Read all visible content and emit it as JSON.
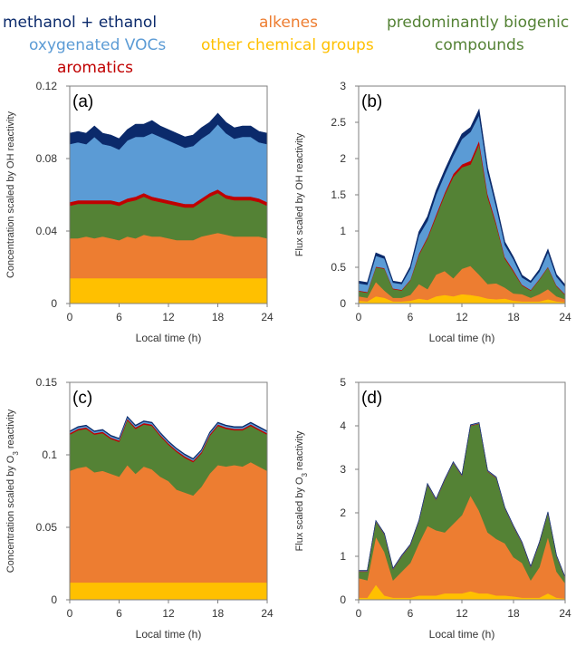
{
  "legend": {
    "methanol_ethanol": "methanol + ethanol",
    "oxygenated_vocs": "oxygenated VOCs",
    "aromatics": "aromatics",
    "alkenes": "alkenes",
    "other_chemical_groups": "other chemical groups",
    "biogenic_line1": "predominantly biogenic",
    "biogenic_line2": "compounds"
  },
  "colors": {
    "methanol_ethanol": "#0b2a6b",
    "oxygenated_vocs": "#5b9bd5",
    "aromatics": "#c00000",
    "alkenes": "#ed7d31",
    "other_chemical_groups": "#ffc000",
    "biogenic": "#548235"
  },
  "chart_data": [
    {
      "type": "area",
      "panel_label": "(a)",
      "xlabel": "Local time (h)",
      "ylabel": "Concentration scaled by OH reactivity",
      "xlim": [
        0,
        24
      ],
      "ylim": [
        0,
        0.12
      ],
      "xticks": [
        "0",
        "6",
        "12",
        "18",
        "24"
      ],
      "yticks": [
        "0",
        "0.04",
        "0.08",
        "0.12"
      ],
      "x": [
        0,
        1,
        2,
        3,
        4,
        5,
        6,
        7,
        8,
        9,
        10,
        11,
        12,
        13,
        14,
        15,
        16,
        17,
        18,
        19,
        20,
        21,
        22,
        23,
        24
      ],
      "series": [
        {
          "key": "other_chemical_groups",
          "values": [
            0.014,
            0.014,
            0.014,
            0.014,
            0.014,
            0.014,
            0.014,
            0.014,
            0.014,
            0.014,
            0.014,
            0.014,
            0.014,
            0.014,
            0.014,
            0.014,
            0.014,
            0.014,
            0.014,
            0.014,
            0.014,
            0.014,
            0.014,
            0.014,
            0.014
          ]
        },
        {
          "key": "alkenes",
          "values": [
            0.022,
            0.022,
            0.023,
            0.022,
            0.023,
            0.022,
            0.021,
            0.023,
            0.022,
            0.024,
            0.023,
            0.023,
            0.022,
            0.021,
            0.021,
            0.021,
            0.023,
            0.024,
            0.025,
            0.024,
            0.023,
            0.023,
            0.023,
            0.023,
            0.022
          ]
        },
        {
          "key": "biogenic",
          "values": [
            0.018,
            0.019,
            0.018,
            0.019,
            0.018,
            0.019,
            0.019,
            0.019,
            0.021,
            0.021,
            0.02,
            0.019,
            0.019,
            0.019,
            0.018,
            0.018,
            0.019,
            0.021,
            0.022,
            0.02,
            0.02,
            0.02,
            0.02,
            0.019,
            0.018
          ]
        },
        {
          "key": "aromatics",
          "values": [
            0.002,
            0.002,
            0.002,
            0.002,
            0.002,
            0.002,
            0.002,
            0.002,
            0.002,
            0.002,
            0.002,
            0.002,
            0.002,
            0.002,
            0.002,
            0.002,
            0.002,
            0.002,
            0.002,
            0.002,
            0.002,
            0.002,
            0.002,
            0.002,
            0.002
          ]
        },
        {
          "key": "oxygenated_vocs",
          "values": [
            0.032,
            0.032,
            0.031,
            0.035,
            0.031,
            0.03,
            0.029,
            0.032,
            0.033,
            0.031,
            0.035,
            0.034,
            0.033,
            0.032,
            0.031,
            0.032,
            0.033,
            0.033,
            0.036,
            0.034,
            0.032,
            0.033,
            0.033,
            0.031,
            0.032
          ]
        },
        {
          "key": "methanol_ethanol",
          "values": [
            0.006,
            0.006,
            0.006,
            0.006,
            0.006,
            0.006,
            0.006,
            0.006,
            0.007,
            0.007,
            0.007,
            0.006,
            0.006,
            0.006,
            0.006,
            0.006,
            0.006,
            0.006,
            0.006,
            0.006,
            0.006,
            0.006,
            0.006,
            0.006,
            0.006
          ]
        }
      ]
    },
    {
      "type": "area",
      "panel_label": "(b)",
      "xlabel": "Local time (h)",
      "ylabel": "Flux scaled by OH reactivity",
      "xlim": [
        0,
        24
      ],
      "ylim": [
        0,
        3
      ],
      "xticks": [
        "0",
        "6",
        "12",
        "18",
        "24"
      ],
      "yticks": [
        "0",
        "0.5",
        "1",
        "1.5",
        "2",
        "2.5",
        "3"
      ],
      "x": [
        0,
        1,
        2,
        3,
        4,
        5,
        6,
        7,
        8,
        9,
        10,
        11,
        12,
        13,
        14,
        15,
        16,
        17,
        18,
        19,
        20,
        21,
        22,
        23,
        24
      ],
      "series": [
        {
          "key": "other_chemical_groups",
          "values": [
            0.04,
            0.03,
            0.1,
            0.08,
            0.03,
            0.03,
            0.04,
            0.07,
            0.05,
            0.1,
            0.12,
            0.1,
            0.13,
            0.12,
            0.1,
            0.07,
            0.06,
            0.07,
            0.04,
            0.03,
            0.03,
            0.03,
            0.06,
            0.03,
            0.02
          ]
        },
        {
          "key": "alkenes",
          "values": [
            0.06,
            0.05,
            0.2,
            0.1,
            0.05,
            0.05,
            0.08,
            0.2,
            0.15,
            0.3,
            0.33,
            0.25,
            0.35,
            0.4,
            0.3,
            0.2,
            0.22,
            0.15,
            0.1,
            0.1,
            0.05,
            0.1,
            0.14,
            0.07,
            0.04
          ]
        },
        {
          "key": "biogenic",
          "values": [
            0.07,
            0.07,
            0.2,
            0.3,
            0.12,
            0.1,
            0.2,
            0.4,
            0.7,
            0.8,
            1.05,
            1.4,
            1.4,
            1.4,
            1.8,
            1.2,
            0.8,
            0.4,
            0.3,
            0.12,
            0.1,
            0.2,
            0.3,
            0.14,
            0.06
          ]
        },
        {
          "key": "aromatics",
          "values": [
            0.01,
            0.01,
            0.01,
            0.01,
            0.01,
            0.01,
            0.01,
            0.02,
            0.02,
            0.03,
            0.03,
            0.04,
            0.04,
            0.05,
            0.05,
            0.04,
            0.03,
            0.02,
            0.02,
            0.01,
            0.01,
            0.01,
            0.01,
            0.01,
            0.01
          ]
        },
        {
          "key": "oxygenated_vocs",
          "values": [
            0.1,
            0.1,
            0.15,
            0.13,
            0.08,
            0.08,
            0.15,
            0.25,
            0.22,
            0.27,
            0.25,
            0.25,
            0.35,
            0.4,
            0.35,
            0.3,
            0.22,
            0.17,
            0.15,
            0.1,
            0.1,
            0.1,
            0.2,
            0.12,
            0.1
          ]
        },
        {
          "key": "methanol_ethanol",
          "values": [
            0.03,
            0.03,
            0.04,
            0.03,
            0.02,
            0.02,
            0.03,
            0.05,
            0.06,
            0.06,
            0.06,
            0.06,
            0.07,
            0.06,
            0.08,
            0.06,
            0.05,
            0.04,
            0.03,
            0.03,
            0.02,
            0.03,
            0.04,
            0.03,
            0.03
          ]
        }
      ]
    },
    {
      "type": "area",
      "panel_label": "(c)",
      "xlabel": "Local time (h)",
      "ylabel": "Concentration scaled by O3 reactivity",
      "xlim": [
        0,
        24
      ],
      "ylim": [
        0,
        0.15
      ],
      "xticks": [
        "0",
        "6",
        "12",
        "18",
        "24"
      ],
      "yticks": [
        "0",
        "0.05",
        "0.1",
        "0.15"
      ],
      "x": [
        0,
        1,
        2,
        3,
        4,
        5,
        6,
        7,
        8,
        9,
        10,
        11,
        12,
        13,
        14,
        15,
        16,
        17,
        18,
        19,
        20,
        21,
        22,
        23,
        24
      ],
      "series": [
        {
          "key": "other_chemical_groups",
          "values": [
            0.012,
            0.012,
            0.012,
            0.012,
            0.012,
            0.012,
            0.012,
            0.012,
            0.012,
            0.012,
            0.012,
            0.012,
            0.012,
            0.012,
            0.012,
            0.012,
            0.012,
            0.012,
            0.012,
            0.012,
            0.012,
            0.012,
            0.012,
            0.012,
            0.012
          ]
        },
        {
          "key": "alkenes",
          "values": [
            0.077,
            0.079,
            0.08,
            0.076,
            0.077,
            0.075,
            0.073,
            0.081,
            0.075,
            0.08,
            0.078,
            0.073,
            0.07,
            0.064,
            0.062,
            0.06,
            0.066,
            0.075,
            0.081,
            0.08,
            0.081,
            0.08,
            0.083,
            0.08,
            0.077
          ]
        },
        {
          "key": "biogenic",
          "values": [
            0.025,
            0.026,
            0.026,
            0.026,
            0.026,
            0.024,
            0.024,
            0.031,
            0.031,
            0.029,
            0.03,
            0.028,
            0.025,
            0.026,
            0.024,
            0.023,
            0.023,
            0.026,
            0.027,
            0.026,
            0.024,
            0.025,
            0.025,
            0.025,
            0.025
          ]
        },
        {
          "key": "aromatics",
          "values": [
            0.001,
            0.001,
            0.001,
            0.001,
            0.001,
            0.001,
            0.001,
            0.001,
            0.001,
            0.001,
            0.001,
            0.001,
            0.001,
            0.001,
            0.001,
            0.001,
            0.001,
            0.001,
            0.001,
            0.001,
            0.001,
            0.001,
            0.001,
            0.001,
            0.001
          ]
        },
        {
          "key": "oxygenated_vocs",
          "values": [
            0.001,
            0.001,
            0.001,
            0.001,
            0.001,
            0.001,
            0.001,
            0.001,
            0.001,
            0.001,
            0.001,
            0.001,
            0.001,
            0.001,
            0.001,
            0.001,
            0.001,
            0.001,
            0.001,
            0.001,
            0.001,
            0.001,
            0.001,
            0.001,
            0.001
          ]
        },
        {
          "key": "methanol_ethanol",
          "values": [
            0.0005,
            0.0005,
            0.0005,
            0.0005,
            0.0005,
            0.0005,
            0.0005,
            0.0005,
            0.0005,
            0.0005,
            0.0005,
            0.0005,
            0.0005,
            0.0005,
            0.0005,
            0.0005,
            0.0005,
            0.0005,
            0.0005,
            0.0005,
            0.0005,
            0.0005,
            0.0005,
            0.0005,
            0.0005
          ]
        }
      ]
    },
    {
      "type": "area",
      "panel_label": "(d)",
      "xlabel": "Local time (h)",
      "ylabel": "Flux scaled by O3 reactivity",
      "xlim": [
        0,
        24
      ],
      "ylim": [
        0,
        5
      ],
      "xticks": [
        "0",
        "6",
        "12",
        "18",
        "24"
      ],
      "yticks": [
        "0",
        "1",
        "2",
        "3",
        "4",
        "5"
      ],
      "x": [
        0,
        1,
        2,
        3,
        4,
        5,
        6,
        7,
        8,
        9,
        10,
        11,
        12,
        13,
        14,
        15,
        16,
        17,
        18,
        19,
        20,
        21,
        22,
        23,
        24
      ],
      "series": [
        {
          "key": "other_chemical_groups",
          "values": [
            0.05,
            0.05,
            0.35,
            0.1,
            0.05,
            0.05,
            0.05,
            0.1,
            0.1,
            0.1,
            0.15,
            0.15,
            0.15,
            0.2,
            0.15,
            0.15,
            0.1,
            0.1,
            0.08,
            0.05,
            0.05,
            0.05,
            0.15,
            0.05,
            0.03
          ]
        },
        {
          "key": "alkenes",
          "values": [
            0.45,
            0.4,
            1.1,
            1.0,
            0.4,
            0.6,
            0.8,
            1.2,
            1.6,
            1.5,
            1.4,
            1.6,
            1.8,
            2.2,
            1.9,
            1.4,
            1.3,
            1.2,
            0.9,
            0.8,
            0.4,
            0.7,
            1.3,
            0.6,
            0.35
          ]
        },
        {
          "key": "biogenic",
          "values": [
            0.15,
            0.2,
            0.35,
            0.4,
            0.25,
            0.35,
            0.4,
            0.5,
            0.95,
            0.7,
            1.2,
            1.4,
            0.9,
            1.6,
            2.0,
            1.4,
            1.4,
            0.8,
            0.7,
            0.45,
            0.3,
            0.55,
            0.55,
            0.35,
            0.12
          ]
        },
        {
          "key": "aromatics",
          "values": [
            0.01,
            0.01,
            0.01,
            0.01,
            0.01,
            0.01,
            0.01,
            0.01,
            0.01,
            0.01,
            0.01,
            0.01,
            0.01,
            0.01,
            0.01,
            0.01,
            0.01,
            0.01,
            0.01,
            0.01,
            0.01,
            0.01,
            0.01,
            0.01,
            0.01
          ]
        },
        {
          "key": "oxygenated_vocs",
          "values": [
            0.01,
            0.01,
            0.01,
            0.01,
            0.01,
            0.01,
            0.01,
            0.01,
            0.01,
            0.01,
            0.01,
            0.01,
            0.01,
            0.01,
            0.01,
            0.01,
            0.01,
            0.01,
            0.01,
            0.01,
            0.01,
            0.01,
            0.01,
            0.01,
            0.01
          ]
        },
        {
          "key": "methanol_ethanol",
          "values": [
            0.005,
            0.005,
            0.005,
            0.005,
            0.005,
            0.005,
            0.005,
            0.005,
            0.005,
            0.005,
            0.005,
            0.005,
            0.005,
            0.005,
            0.005,
            0.005,
            0.005,
            0.005,
            0.005,
            0.005,
            0.005,
            0.005,
            0.005,
            0.005,
            0.005
          ]
        }
      ]
    }
  ]
}
